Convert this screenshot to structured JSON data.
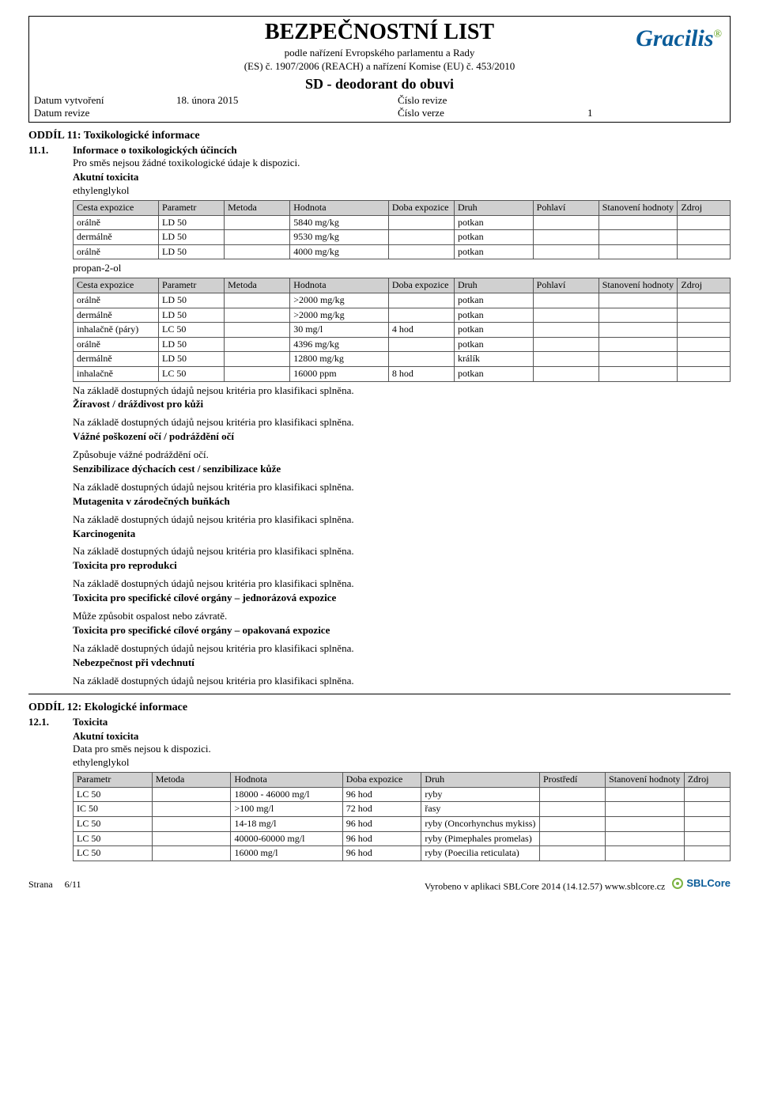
{
  "header": {
    "main_title": "BEZPEČNOSTNÍ LIST",
    "sub_line1": "podle nařízení Evropského parlamentu a Rady",
    "sub_line2": "(ES) č. 1907/2006 (REACH) a nařízení Komise (EU) č. 453/2010",
    "product": "SD - deodorant do obuvi",
    "logo": "Gracilis",
    "meta": {
      "created_lbl": "Datum vytvoření",
      "created_val": "18. února 2015",
      "revnum_lbl": "Číslo revize",
      "revised_lbl": "Datum revize",
      "vernum_lbl": "Číslo verze",
      "vernum_val": "1"
    }
  },
  "s11": {
    "title": "ODDÍL 11: Toxikologické informace",
    "num": "11.1.",
    "heading": "Informace o toxikologických účincích",
    "intro": "Pro směs nejsou žádné toxikologické údaje k dispozici.",
    "akutni": "Akutní toxicita",
    "sub1": "ethylenglykol",
    "sub2": "propan-2-ol",
    "th": {
      "route": "Cesta expozice",
      "param": "Parametr",
      "method": "Metoda",
      "value": "Hodnota",
      "dur": "Doba expozice",
      "species": "Druh",
      "sex": "Pohlaví",
      "det": "Stanovení hodnoty",
      "src": "Zdroj"
    },
    "t1": [
      {
        "r": "orálně",
        "p": "LD 50",
        "v": "5840 mg/kg",
        "d": "",
        "s": "potkan"
      },
      {
        "r": "dermálně",
        "p": "LD 50",
        "v": "9530 mg/kg",
        "d": "",
        "s": "potkan"
      },
      {
        "r": "orálně",
        "p": "LD 50",
        "v": "4000 mg/kg",
        "d": "",
        "s": "potkan"
      }
    ],
    "t2": [
      {
        "r": "orálně",
        "p": "LD 50",
        "v": ">2000 mg/kg",
        "d": "",
        "s": "potkan"
      },
      {
        "r": "dermálně",
        "p": "LD 50",
        "v": ">2000 mg/kg",
        "d": "",
        "s": "potkan"
      },
      {
        "r": "inhalačně (páry)",
        "p": "LC 50",
        "v": "30 mg/l",
        "d": "4 hod",
        "s": "potkan"
      },
      {
        "r": "orálně",
        "p": "LD 50",
        "v": "4396 mg/kg",
        "d": "",
        "s": "potkan"
      },
      {
        "r": "dermálně",
        "p": "LD 50",
        "v": "12800 mg/kg",
        "d": "",
        "s": "králík"
      },
      {
        "r": "inhalačně",
        "p": "LC 50",
        "v": "16000 ppm",
        "d": "8 hod",
        "s": "potkan"
      }
    ],
    "not_met": "Na základě dostupných údajů nejsou kritéria pro klasifikaci splněna.",
    "h_ziravost": "Žíravost / dráždivost pro kůži",
    "h_oci": "Vážné poškození očí / podráždění očí",
    "oci_text": "Způsobuje vážné podráždění očí.",
    "h_senz": "Senzibilizace dýchacích cest / senzibilizace kůže",
    "h_muta": "Mutagenita v zárodečných buňkách",
    "h_karc": "Karcinogenita",
    "h_repr": "Toxicita pro reprodukci",
    "h_stot_se": "Toxicita pro specifické cílové orgány – jednorázová expozice",
    "stot_se_text": "Může způsobit ospalost nebo závratě.",
    "h_stot_re": "Toxicita pro specifické cílové orgány – opakovaná expozice",
    "h_asp": "Nebezpečnost při vdechnutí"
  },
  "s12": {
    "title": "ODDÍL 12: Ekologické informace",
    "num": "12.1.",
    "heading": "Toxicita",
    "akutni": "Akutní toxicita",
    "nodata": "Data pro směs nejsou k dispozici.",
    "sub1": "ethylenglykol",
    "th": {
      "param": "Parametr",
      "method": "Metoda",
      "value": "Hodnota",
      "dur": "Doba expozice",
      "species": "Druh",
      "env": "Prostředí",
      "det": "Stanovení hodnoty",
      "src": "Zdroj"
    },
    "t1": [
      {
        "p": "LC 50",
        "v": "18000 - 46000 mg/l",
        "d": "96 hod",
        "s": "ryby"
      },
      {
        "p": "IC 50",
        "v": ">100 mg/l",
        "d": "72 hod",
        "s": "řasy"
      },
      {
        "p": "LC 50",
        "v": "14-18 mg/l",
        "d": "96 hod",
        "s": "ryby (Oncorhynchus mykiss)"
      },
      {
        "p": "LC 50",
        "v": "40000-60000 mg/l",
        "d": "96 hod",
        "s": "ryby (Pimephales promelas)"
      },
      {
        "p": "LC 50",
        "v": "16000 mg/l",
        "d": "96 hod",
        "s": "ryby (Poecilia reticulata)"
      }
    ]
  },
  "footer": {
    "page_lbl": "Strana",
    "page_val": "6/11",
    "gen": "Vyrobeno v aplikaci SBLCore 2014 (14.12.57) www.sblcore.cz",
    "logo": "SBLCore"
  }
}
